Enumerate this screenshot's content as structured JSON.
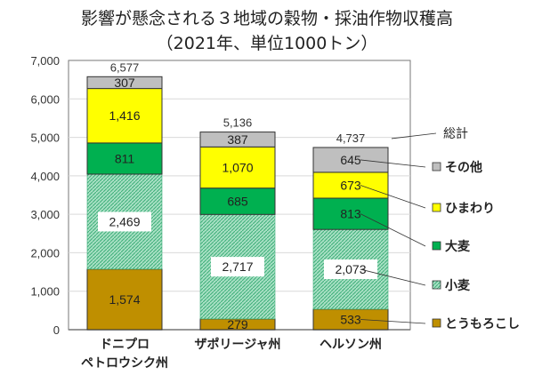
{
  "chart_data": {
    "type": "bar",
    "stacked": true,
    "title": "影響が懸念される３地域の穀物・採油作物収穫高",
    "subtitle": "（2021年、単位1000トン）",
    "categories": [
      [
        "ドニプロ",
        "ペトロウシク州"
      ],
      [
        "ザポリージャ州"
      ],
      [
        "ヘルソン州"
      ]
    ],
    "series": [
      {
        "name": "とうもろこし",
        "values": [
          1574,
          279,
          533
        ],
        "color": "#bf8f00"
      },
      {
        "name": "小麦",
        "values": [
          2469,
          2717,
          2073
        ],
        "color": "#8fd4b0",
        "pattern": "hatch"
      },
      {
        "name": "大麦",
        "values": [
          811,
          685,
          813
        ],
        "color": "#00b050"
      },
      {
        "name": "ひまわり",
        "values": [
          1416,
          1070,
          673
        ],
        "color": "#ffff00"
      },
      {
        "name": "その他",
        "values": [
          307,
          387,
          645
        ],
        "color": "#bfbfbf"
      }
    ],
    "totals": [
      6577,
      5136,
      4737
    ],
    "value_labels": [
      [
        "1,574",
        "2,469",
        "811",
        "1,416",
        "307"
      ],
      [
        "279",
        "2,717",
        "685",
        "1,070",
        "387"
      ],
      [
        "533",
        "2,073",
        "813",
        "673",
        "645"
      ]
    ],
    "total_labels": [
      "6,577",
      "5,136",
      "4,737"
    ],
    "total_legend": "総計",
    "ylim": [
      0,
      7000
    ],
    "yticks": [
      0,
      1000,
      2000,
      3000,
      4000,
      5000,
      6000,
      7000
    ],
    "ytick_labels": [
      "0",
      "1,000",
      "2,000",
      "3,000",
      "4,000",
      "5,000",
      "6,000",
      "7,000"
    ],
    "grid": true,
    "legend": "right"
  }
}
